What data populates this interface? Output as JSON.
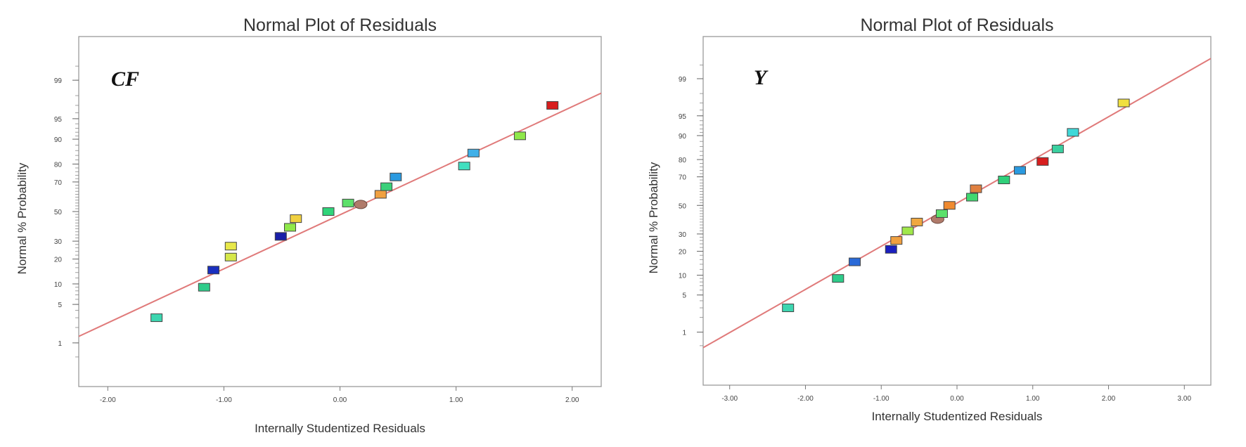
{
  "chart_data": [
    {
      "type": "scatter",
      "title": "Normal Plot of Residuals",
      "panel_label": "CF",
      "xlabel": "Internally Studentized Residuals",
      "ylabel": "Normal % Probability",
      "xlim": [
        -2.25,
        2.25
      ],
      "x_ticks": [
        -2.0,
        -1.0,
        0.0,
        1.0,
        2.0
      ],
      "x_tick_labels": [
        "-2.00",
        "-1.00",
        "0.00",
        "1.00",
        "2.00"
      ],
      "y_scale": "normal-probability",
      "y_ticks": [
        1,
        5,
        10,
        20,
        30,
        50,
        70,
        80,
        90,
        95,
        99
      ],
      "y_tick_labels": [
        "1",
        "5",
        "10",
        "20",
        "30",
        "50",
        "70",
        "80",
        "90",
        "95",
        "99"
      ],
      "fit_line": {
        "color": "#e07a7a",
        "x": [
          -2.25,
          2.25
        ],
        "y": [
          1.35,
          98.2
        ]
      },
      "points": [
        {
          "x": -1.58,
          "y": 3,
          "color": "#3dd6b0"
        },
        {
          "x": -1.17,
          "y": 9,
          "color": "#2ecc8a"
        },
        {
          "x": -1.09,
          "y": 15,
          "color": "#1a2fbf"
        },
        {
          "x": -0.94,
          "y": 21,
          "color": "#d6e84a"
        },
        {
          "x": -0.94,
          "y": 27,
          "color": "#e8e84a"
        },
        {
          "x": -0.51,
          "y": 33,
          "color": "#1a1fa8"
        },
        {
          "x": -0.43,
          "y": 39,
          "color": "#8fe84a"
        },
        {
          "x": -0.38,
          "y": 45,
          "color": "#f0d040"
        },
        {
          "x": -0.1,
          "y": 50,
          "color": "#30d47a"
        },
        {
          "x": 0.07,
          "y": 56,
          "color": "#5ce06a"
        },
        {
          "x": 0.13,
          "y": 55,
          "color": "#b07a6a"
        },
        {
          "x": 0.35,
          "y": 62,
          "color": "#f0a040"
        },
        {
          "x": 0.4,
          "y": 67,
          "color": "#3ad07a"
        },
        {
          "x": 0.48,
          "y": 73,
          "color": "#2a9ae0"
        },
        {
          "x": 1.07,
          "y": 79,
          "color": "#40e0c0"
        },
        {
          "x": 1.15,
          "y": 85,
          "color": "#40b0e8"
        },
        {
          "x": 1.55,
          "y": 91,
          "color": "#8fe84a"
        },
        {
          "x": 1.83,
          "y": 97,
          "color": "#d81e1e"
        }
      ]
    },
    {
      "type": "scatter",
      "title": "Normal Plot of Residuals",
      "panel_label": "Y",
      "xlabel": "Internally Studentized Residuals",
      "ylabel": "Normal % Probability",
      "xlim": [
        -3.35,
        3.35
      ],
      "x_ticks": [
        -3.0,
        -2.0,
        -1.0,
        0.0,
        1.0,
        2.0,
        3.0
      ],
      "x_tick_labels": [
        "-3.00",
        "-2.00",
        "-1.00",
        "0.00",
        "1.00",
        "2.00",
        "3.00"
      ],
      "y_scale": "normal-probability",
      "y_ticks": [
        1,
        5,
        10,
        20,
        30,
        50,
        70,
        80,
        90,
        95,
        99
      ],
      "y_tick_labels": [
        "1",
        "5",
        "10",
        "20",
        "30",
        "50",
        "70",
        "80",
        "90",
        "95",
        "99"
      ],
      "fit_line": {
        "color": "#e07a7a",
        "x": [
          -3.35,
          3.35
        ],
        "y": [
          0.45,
          99.65
        ]
      },
      "points": [
        {
          "x": -2.23,
          "y": 3,
          "color": "#3dd6b0"
        },
        {
          "x": -1.57,
          "y": 9,
          "color": "#2ecc8a"
        },
        {
          "x": -1.35,
          "y": 15,
          "color": "#2a6ad8"
        },
        {
          "x": -0.87,
          "y": 21,
          "color": "#1a1fbf"
        },
        {
          "x": -0.8,
          "y": 26,
          "color": "#f0a040"
        },
        {
          "x": -0.65,
          "y": 32,
          "color": "#a0e84a"
        },
        {
          "x": -0.53,
          "y": 38,
          "color": "#f0a840"
        },
        {
          "x": -0.33,
          "y": 40,
          "color": "#b07a6a"
        },
        {
          "x": -0.2,
          "y": 44,
          "color": "#5ce06a"
        },
        {
          "x": -0.1,
          "y": 50,
          "color": "#f08a30"
        },
        {
          "x": 0.2,
          "y": 56,
          "color": "#40d870"
        },
        {
          "x": 0.25,
          "y": 62,
          "color": "#e08040"
        },
        {
          "x": 0.62,
          "y": 68,
          "color": "#30d07a"
        },
        {
          "x": 0.83,
          "y": 74,
          "color": "#2a9ae0"
        },
        {
          "x": 1.13,
          "y": 79,
          "color": "#d81e1e"
        },
        {
          "x": 1.33,
          "y": 85,
          "color": "#3ad0a0"
        },
        {
          "x": 1.53,
          "y": 91,
          "color": "#40d8d8"
        },
        {
          "x": 2.2,
          "y": 97,
          "color": "#f0e040"
        }
      ]
    }
  ]
}
